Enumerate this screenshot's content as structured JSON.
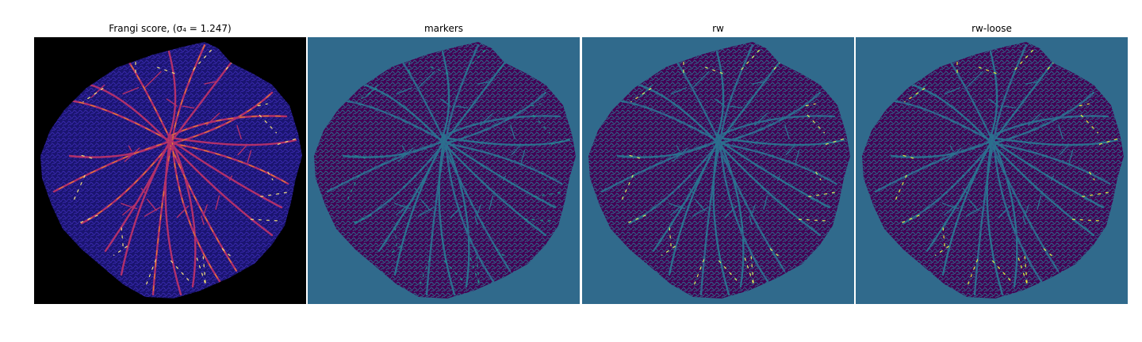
{
  "panels": [
    {
      "title": "Frangi score, (σ₄ = 1.247)",
      "colors": {
        "background": "#000000",
        "tissue": "#1a1470",
        "texture": "#3a2ab0",
        "vessel_a": "#b2306a",
        "vessel_b": "#e88a2a",
        "vessel_c": "#f5e27a"
      }
    },
    {
      "title": "markers",
      "colors": {
        "background": "#306a8c",
        "tissue": "#440154",
        "texture": "#2b6f8e",
        "vessel_a": "#2b6f8e",
        "vessel_b": "#3b528b",
        "vessel_c": "#21918c"
      }
    },
    {
      "title": "rw",
      "colors": {
        "background": "#306a8c",
        "tissue": "#440154",
        "texture": "#2b6f8e",
        "vessel_a": "#2b6f8e",
        "vessel_b": "#3b528b",
        "vessel_c": "#d9f05a"
      }
    },
    {
      "title": "rw-loose",
      "colors": {
        "background": "#306a8c",
        "tissue": "#440154",
        "texture": "#2b6f8e",
        "vessel_a": "#2b6f8e",
        "vessel_b": "#3b528b",
        "vessel_c": "#e4f03a"
      }
    }
  ]
}
